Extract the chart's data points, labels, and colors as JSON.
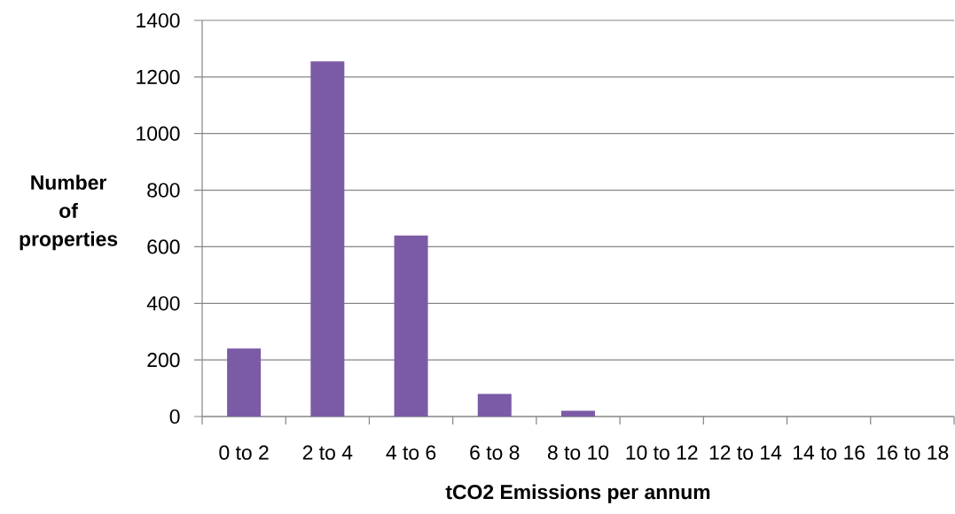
{
  "chart_data": {
    "type": "bar",
    "xlabel": "tCO2 Emissions per annum",
    "ylabel": "Number of properties",
    "categories": [
      "0 to 2",
      "2 to 4",
      "4 to 6",
      "6 to 8",
      "8 to 10",
      "10 to 12",
      "12 to 14",
      "14 to 16",
      "16 to 18"
    ],
    "values": [
      240,
      1255,
      640,
      80,
      20,
      0,
      0,
      0,
      0
    ],
    "color": "#7b5aa6",
    "ylim": [
      0,
      1400
    ],
    "yticks": [
      0,
      200,
      400,
      600,
      800,
      1000,
      1200,
      1400
    ],
    "grid": "y"
  }
}
